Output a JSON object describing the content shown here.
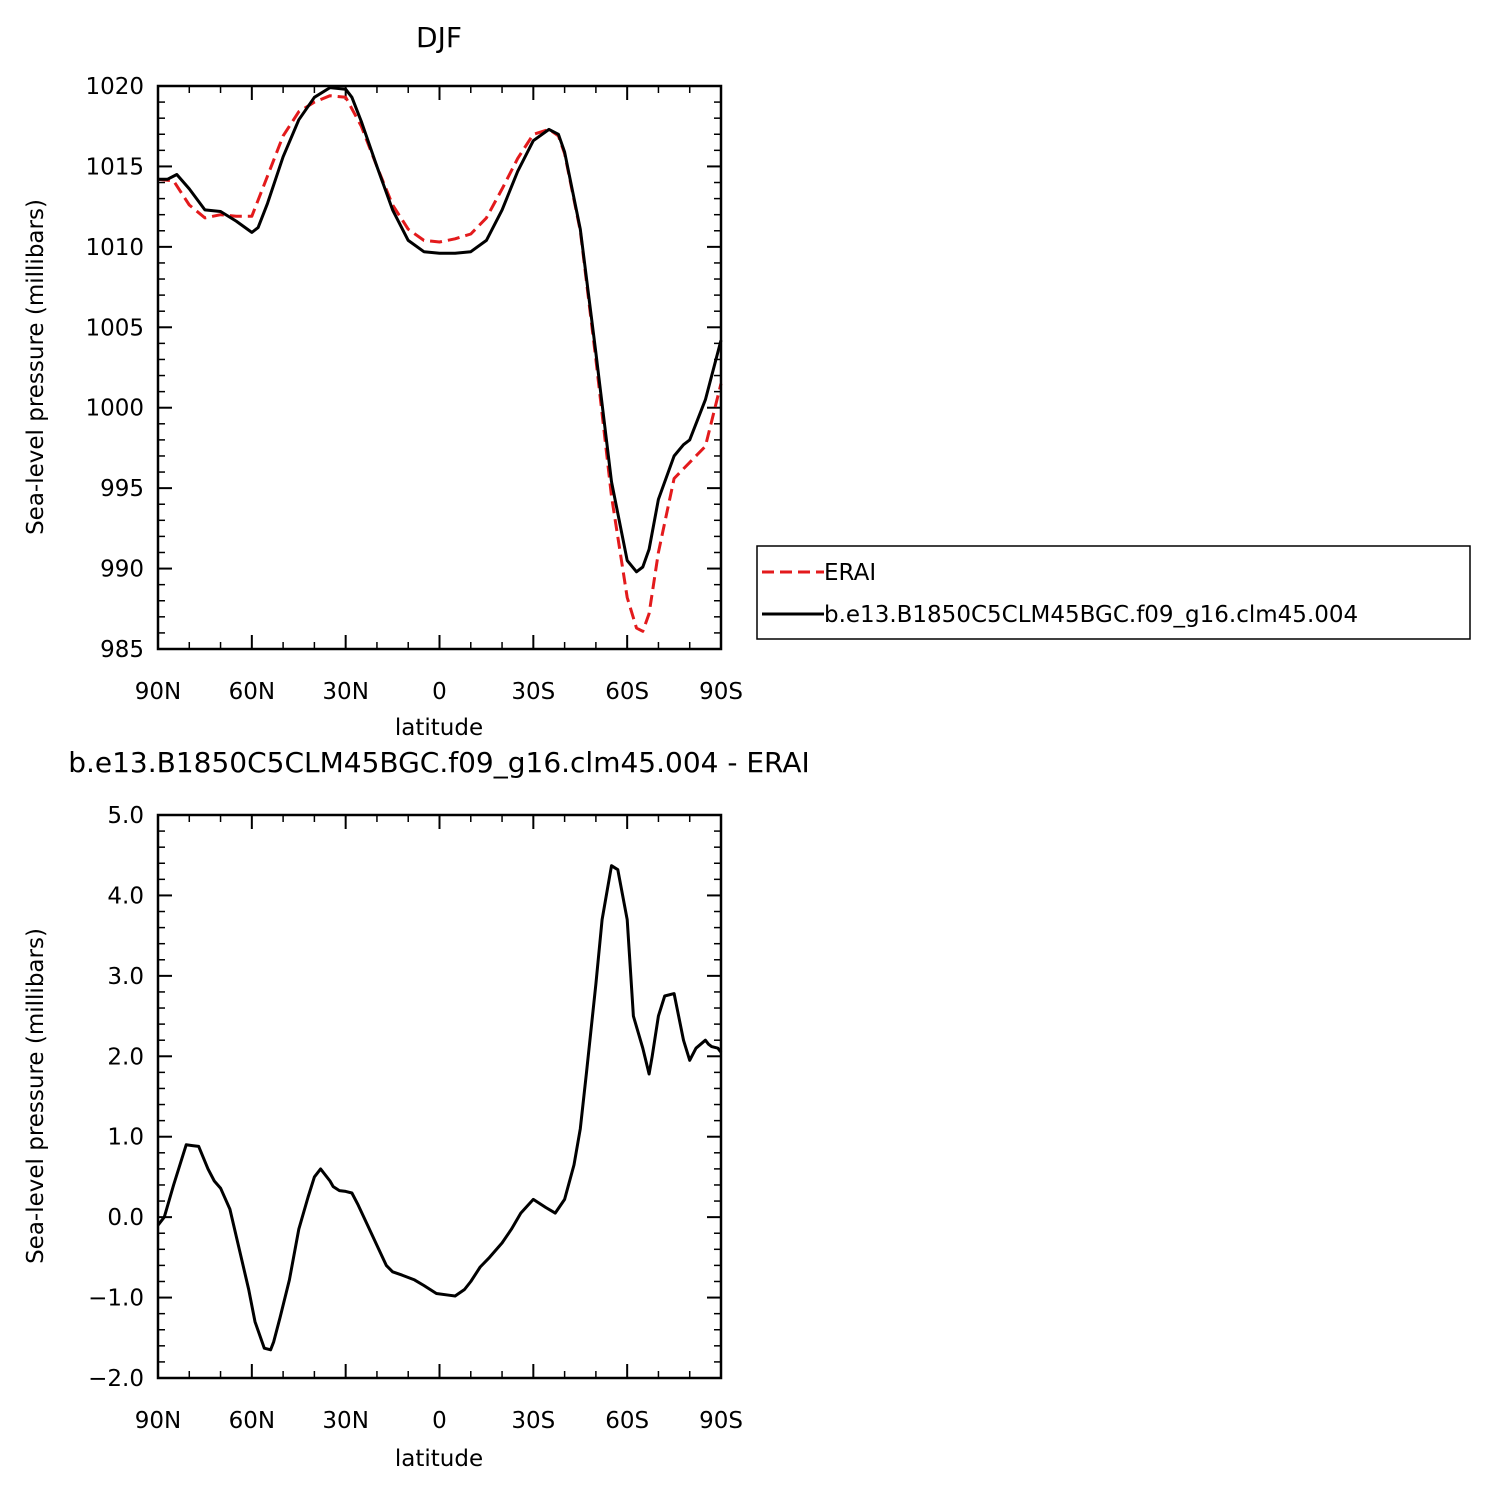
{
  "chart_data": [
    {
      "type": "line",
      "title": "DJF",
      "xlabel": "latitude",
      "ylabel": "Sea-level pressure (millibars)",
      "xlim": [
        90,
        -90
      ],
      "ylim": [
        985,
        1020
      ],
      "x_ticks": [
        90,
        60,
        30,
        0,
        -30,
        -60,
        -90
      ],
      "x_tick_labels": [
        "90N",
        "60N",
        "30N",
        "0",
        "30S",
        "60S",
        "90S"
      ],
      "y_ticks": [
        985,
        990,
        995,
        1000,
        1005,
        1010,
        1015,
        1020
      ],
      "y_tick_labels": [
        "985",
        "990",
        "995",
        "1000",
        "1005",
        "1010",
        "1015",
        "1020"
      ],
      "legend_position": "right",
      "series": [
        {
          "name": "ERAI",
          "color": "#e31a1c",
          "dash": "dashed",
          "x": [
            90,
            85,
            80,
            75,
            70,
            65,
            60,
            55,
            50,
            45,
            40,
            35,
            30,
            25,
            20,
            15,
            10,
            5,
            0,
            -5,
            -10,
            -15,
            -20,
            -25,
            -30,
            -35,
            -38,
            -40,
            -45,
            -50,
            -55,
            -60,
            -63,
            -65,
            -67,
            -70,
            -75,
            -80,
            -85,
            -90
          ],
          "y": [
            1014.2,
            1014.1,
            1012.6,
            1011.8,
            1012.0,
            1011.9,
            1011.9,
            1014.4,
            1016.9,
            1018.4,
            1019.0,
            1019.4,
            1019.3,
            1017.5,
            1015.0,
            1012.6,
            1011.1,
            1010.4,
            1010.3,
            1010.5,
            1010.8,
            1011.8,
            1013.6,
            1015.5,
            1017.0,
            1017.3,
            1016.9,
            1015.8,
            1011.0,
            1003.0,
            994.5,
            988.2,
            986.3,
            986.1,
            987.2,
            991.0,
            995.6,
            996.6,
            997.6,
            1001.5
          ]
        },
        {
          "name": "b.e13.B1850C5CLM45BGC.f09_g16.clm45.004",
          "color": "#000000",
          "dash": "solid",
          "x": [
            90,
            87,
            84,
            80,
            75,
            70,
            65,
            60,
            58,
            55,
            50,
            45,
            40,
            35,
            30,
            28,
            25,
            20,
            15,
            10,
            5,
            0,
            -5,
            -10,
            -15,
            -20,
            -25,
            -30,
            -35,
            -38,
            -40,
            -45,
            -50,
            -55,
            -60,
            -63,
            -65,
            -67,
            -70,
            -75,
            -78,
            -80,
            -85,
            -90
          ],
          "y": [
            1014.2,
            1014.2,
            1014.5,
            1013.6,
            1012.3,
            1012.2,
            1011.6,
            1010.9,
            1011.2,
            1012.7,
            1015.6,
            1017.9,
            1019.3,
            1019.9,
            1019.8,
            1019.3,
            1017.8,
            1015.0,
            1012.3,
            1010.4,
            1009.7,
            1009.6,
            1009.6,
            1009.7,
            1010.4,
            1012.3,
            1014.7,
            1016.6,
            1017.3,
            1017.0,
            1015.9,
            1011.1,
            1003.4,
            995.4,
            990.5,
            989.8,
            990.1,
            991.2,
            994.3,
            997.0,
            997.7,
            998.0,
            1000.5,
            1004.2
          ]
        }
      ]
    },
    {
      "type": "line",
      "title": "b.e13.B1850C5CLM45BGC.f09_g16.clm45.004 - ERAI",
      "xlabel": "latitude",
      "ylabel": "Sea-level pressure (millibars)",
      "xlim": [
        90,
        -90
      ],
      "ylim": [
        -2.0,
        5.0
      ],
      "x_ticks": [
        90,
        60,
        30,
        0,
        -30,
        -60,
        -90
      ],
      "x_tick_labels": [
        "90N",
        "60N",
        "30N",
        "0",
        "30S",
        "60S",
        "90S"
      ],
      "y_ticks": [
        -2.0,
        -1.0,
        0.0,
        1.0,
        2.0,
        3.0,
        4.0,
        5.0
      ],
      "y_tick_labels": [
        "−2.0",
        "−1.0",
        "0.0",
        "1.0",
        "2.0",
        "3.0",
        "4.0",
        "5.0"
      ],
      "series": [
        {
          "color": "#000000",
          "dash": "solid",
          "x": [
            90,
            88,
            85,
            81,
            79,
            77,
            74,
            72,
            70,
            67,
            64,
            61,
            59,
            56,
            54,
            53,
            51,
            48,
            45,
            42,
            40,
            38,
            35,
            34,
            32,
            30,
            28,
            26,
            23,
            20,
            17,
            15,
            12,
            8,
            5,
            1,
            -3,
            -5,
            -8,
            -10,
            -13,
            -16,
            -20,
            -23,
            -26,
            -30,
            -34,
            -37,
            -40,
            -43,
            -45,
            -47,
            -50,
            -52,
            -55,
            -57,
            -60,
            -62,
            -65,
            -67,
            -68,
            -70,
            -72,
            -75,
            -78,
            -80,
            -82,
            -85,
            -86,
            -87,
            -89,
            -90
          ],
          "y": [
            -0.1,
            0.0,
            0.4,
            0.9,
            0.89,
            0.88,
            0.6,
            0.45,
            0.36,
            0.1,
            -0.4,
            -0.9,
            -1.3,
            -1.63,
            -1.65,
            -1.55,
            -1.25,
            -0.78,
            -0.15,
            0.25,
            0.5,
            0.6,
            0.45,
            0.38,
            0.33,
            0.32,
            0.3,
            0.15,
            -0.1,
            -0.35,
            -0.6,
            -0.68,
            -0.72,
            -0.78,
            -0.85,
            -0.95,
            -0.97,
            -0.98,
            -0.9,
            -0.8,
            -0.62,
            -0.5,
            -0.32,
            -0.15,
            0.05,
            0.22,
            0.12,
            0.05,
            0.22,
            0.65,
            1.1,
            1.8,
            2.9,
            3.7,
            4.37,
            4.32,
            3.7,
            2.5,
            2.1,
            1.78,
            2.0,
            2.5,
            2.75,
            2.78,
            2.2,
            1.95,
            2.1,
            2.2,
            2.15,
            2.12,
            2.1,
            2.05
          ]
        }
      ]
    }
  ]
}
